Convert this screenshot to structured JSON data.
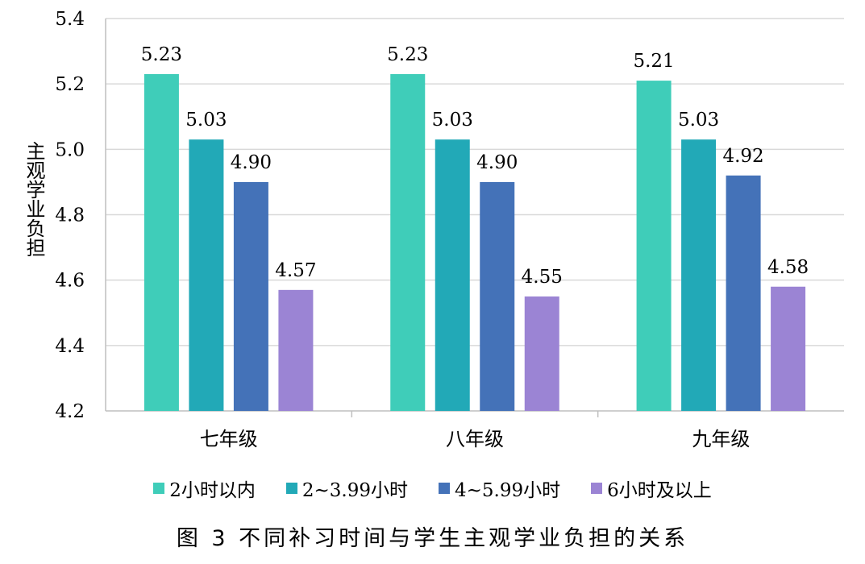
{
  "caption": "图 3  不同补习时间与学生主观学业负担的关系",
  "chart_data": {
    "type": "bar",
    "title": "",
    "xlabel": "",
    "ylabel": "主观学业负担",
    "ylim": [
      4.2,
      5.4
    ],
    "yticks": [
      4.2,
      4.4,
      4.6,
      4.8,
      5.0,
      5.2,
      5.4
    ],
    "ytick_labels": [
      "4.2",
      "4.4",
      "4.6",
      "4.8",
      "5.0",
      "5.2",
      "5.4"
    ],
    "grid": true,
    "legend_position": "bottom",
    "categories": [
      "七年级",
      "八年级",
      "九年级"
    ],
    "series": [
      {
        "name": "2小时以内",
        "color": "#3FCDB9",
        "values": [
          5.23,
          5.23,
          5.21
        ],
        "labels": [
          "5.23",
          "5.23",
          "5.21"
        ]
      },
      {
        "name": "2~3.99小时",
        "color": "#22A9B7",
        "values": [
          5.03,
          5.03,
          5.03
        ],
        "labels": [
          "5.03",
          "5.03",
          "5.03"
        ]
      },
      {
        "name": "4~5.99小时",
        "color": "#4472B8",
        "values": [
          4.9,
          4.9,
          4.92
        ],
        "labels": [
          "4.90",
          "4.90",
          "4.92"
        ]
      },
      {
        "name": "6小时及以上",
        "color": "#9B84D4",
        "values": [
          4.57,
          4.55,
          4.58
        ],
        "labels": [
          "4.57",
          "4.55",
          "4.58"
        ]
      }
    ]
  }
}
